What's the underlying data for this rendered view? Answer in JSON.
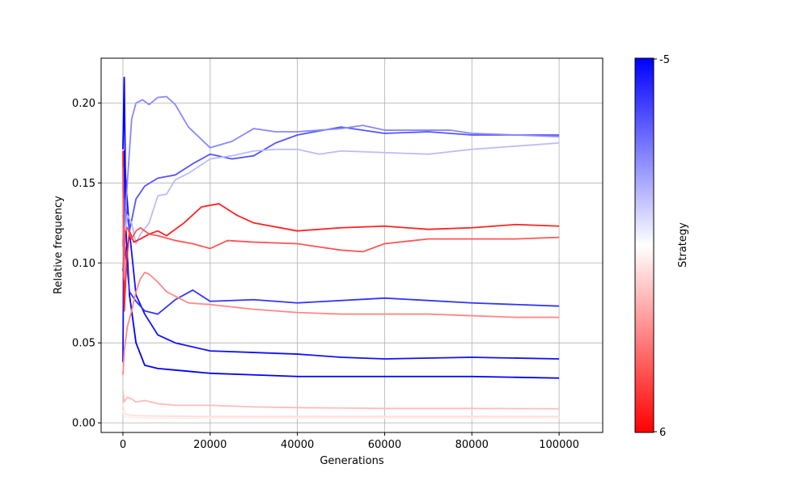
{
  "chart_data": {
    "type": "line",
    "xlabel": "Generations",
    "ylabel": "Relative frequency",
    "xlim": [
      -5000,
      110000
    ],
    "ylim": [
      -0.006,
      0.228
    ],
    "xticks": [
      0,
      20000,
      40000,
      60000,
      80000,
      100000
    ],
    "xtick_labels": [
      "0",
      "20000",
      "40000",
      "60000",
      "80000",
      "100000"
    ],
    "yticks": [
      0.0,
      0.05,
      0.1,
      0.15,
      0.2
    ],
    "ytick_labels": [
      "0.00",
      "0.05",
      "0.10",
      "0.15",
      "0.20"
    ],
    "grid": true,
    "colorbar": {
      "label": "Strategy",
      "top_label": "-5",
      "bottom_label": "6",
      "colormap": [
        "#0000ff",
        "#ffffff",
        "#ff0000"
      ]
    },
    "series": [
      {
        "color": "#0000ff",
        "x": [
          0,
          300,
          700,
          1500,
          3000,
          5000,
          8000,
          12000,
          16000,
          20000,
          30000,
          40000,
          60000,
          80000,
          100000
        ],
        "y": [
          0.171,
          0.216,
          0.12,
          0.08,
          0.05,
          0.036,
          0.034,
          0.033,
          0.032,
          0.031,
          0.03,
          0.029,
          0.029,
          0.029,
          0.028
        ]
      },
      {
        "color": "#1010ff",
        "x": [
          0,
          300,
          700,
          1500,
          3000,
          5000,
          8000,
          12000,
          20000,
          30000,
          40000,
          50000,
          60000,
          80000,
          100000
        ],
        "y": [
          0.038,
          0.17,
          0.15,
          0.12,
          0.08,
          0.068,
          0.055,
          0.05,
          0.045,
          0.044,
          0.043,
          0.041,
          0.04,
          0.041,
          0.04
        ]
      },
      {
        "color": "#3333ff",
        "x": [
          0,
          500,
          1500,
          3000,
          5000,
          8000,
          12000,
          16000,
          20000,
          30000,
          40000,
          60000,
          80000,
          100000
        ],
        "y": [
          0.095,
          0.11,
          0.082,
          0.076,
          0.07,
          0.068,
          0.077,
          0.083,
          0.076,
          0.077,
          0.075,
          0.078,
          0.075,
          0.073
        ]
      },
      {
        "color": "#5555ff",
        "x": [
          0,
          400,
          1500,
          3000,
          5000,
          8000,
          12000,
          16000,
          20000,
          25000,
          30000,
          35000,
          40000,
          50000,
          60000,
          70000,
          80000,
          90000,
          100000
        ],
        "y": [
          0.11,
          0.14,
          0.12,
          0.14,
          0.148,
          0.153,
          0.155,
          0.162,
          0.168,
          0.165,
          0.167,
          0.175,
          0.18,
          0.185,
          0.181,
          0.182,
          0.18,
          0.18,
          0.18
        ]
      },
      {
        "color": "#8888ff",
        "x": [
          0,
          400,
          1000,
          2000,
          3000,
          4500,
          6000,
          8000,
          10000,
          12000,
          15000,
          20000,
          25000,
          30000,
          35000,
          40000,
          50000,
          55000,
          60000,
          75000,
          80000,
          90000,
          100000
        ],
        "y": [
          0.13,
          0.12,
          0.15,
          0.19,
          0.2,
          0.202,
          0.199,
          0.2035,
          0.204,
          0.199,
          0.185,
          0.172,
          0.176,
          0.184,
          0.182,
          0.182,
          0.184,
          0.186,
          0.183,
          0.183,
          0.181,
          0.18,
          0.179
        ]
      },
      {
        "color": "#bbbbff",
        "x": [
          0,
          500,
          1000,
          2000,
          3000,
          4000,
          6000,
          8000,
          10000,
          12000,
          15000,
          20000,
          25000,
          30000,
          35000,
          40000,
          45000,
          50000,
          60000,
          70000,
          80000,
          90000,
          100000
        ],
        "y": [
          0.11,
          0.12,
          0.13,
          0.125,
          0.112,
          0.118,
          0.125,
          0.142,
          0.143,
          0.152,
          0.156,
          0.165,
          0.167,
          0.17,
          0.171,
          0.171,
          0.168,
          0.17,
          0.169,
          0.168,
          0.171,
          0.173,
          0.175
        ]
      },
      {
        "color": "#ff2222",
        "x": [
          0,
          300,
          800,
          1500,
          2500,
          4000,
          6000,
          8000,
          10000,
          14000,
          18000,
          22000,
          26000,
          30000,
          40000,
          50000,
          60000,
          70000,
          80000,
          90000,
          100000
        ],
        "y": [
          0.17,
          0.07,
          0.1,
          0.12,
          0.113,
          0.115,
          0.118,
          0.12,
          0.117,
          0.125,
          0.135,
          0.137,
          0.13,
          0.125,
          0.12,
          0.122,
          0.123,
          0.121,
          0.122,
          0.124,
          0.123
        ]
      },
      {
        "color": "#ff5555",
        "x": [
          0,
          200,
          500,
          1000,
          2000,
          3000,
          4000,
          6000,
          8000,
          12000,
          16000,
          20000,
          24000,
          30000,
          40000,
          50000,
          55000,
          60000,
          70000,
          80000,
          90000,
          100000
        ],
        "y": [
          0.16,
          0.09,
          0.12,
          0.122,
          0.115,
          0.12,
          0.122,
          0.118,
          0.117,
          0.114,
          0.112,
          0.109,
          0.114,
          0.113,
          0.112,
          0.108,
          0.107,
          0.112,
          0.115,
          0.115,
          0.115,
          0.116
        ]
      },
      {
        "color": "#ff8888",
        "x": [
          0,
          300,
          1000,
          2000,
          3000,
          4000,
          5000,
          6000,
          8000,
          10000,
          15000,
          20000,
          30000,
          40000,
          50000,
          60000,
          70000,
          80000,
          90000,
          100000
        ],
        "y": [
          0.03,
          0.045,
          0.06,
          0.07,
          0.082,
          0.09,
          0.094,
          0.093,
          0.088,
          0.082,
          0.075,
          0.074,
          0.071,
          0.069,
          0.068,
          0.068,
          0.068,
          0.067,
          0.066,
          0.066
        ]
      },
      {
        "color": "#ffbbbb",
        "x": [
          0,
          300,
          1000,
          2000,
          3000,
          5000,
          8000,
          12000,
          20000,
          30000,
          40000,
          50000,
          60000,
          80000,
          100000
        ],
        "y": [
          0.02,
          0.013,
          0.016,
          0.015,
          0.013,
          0.014,
          0.012,
          0.011,
          0.011,
          0.01,
          0.0095,
          0.0093,
          0.009,
          0.009,
          0.0088
        ]
      },
      {
        "color": "#ffdddd",
        "x": [
          0,
          300,
          1000,
          3000,
          10000,
          20000,
          40000,
          60000,
          80000,
          100000
        ],
        "y": [
          0.012,
          0.006,
          0.005,
          0.0045,
          0.0042,
          0.004,
          0.004,
          0.004,
          0.004,
          0.004
        ]
      },
      {
        "color": "#ffeeee",
        "x": [
          0,
          300,
          1000,
          3000,
          10000,
          20000,
          40000,
          60000,
          80000,
          100000
        ],
        "y": [
          0.008,
          0.004,
          0.0035,
          0.0032,
          0.003,
          0.003,
          0.003,
          0.003,
          0.003,
          0.003
        ]
      }
    ]
  }
}
